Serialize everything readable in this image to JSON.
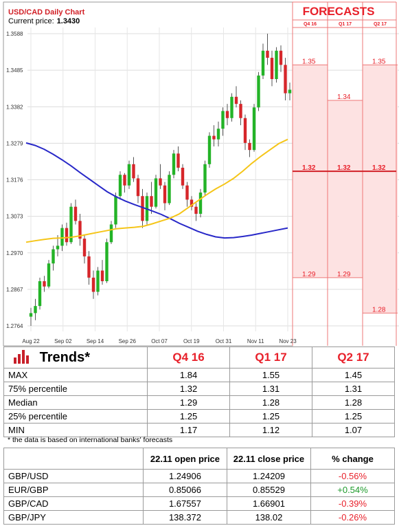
{
  "chart_data": {
    "type": "candlestick",
    "title": "USD/CAD Daily Chart",
    "price_label": "Current price:",
    "price_value": "1.3430",
    "y_ticks": [
      "1.3588",
      "1.3485",
      "1.3382",
      "1.3279",
      "1.3176",
      "1.3073",
      "1.2970",
      "1.2867",
      "1.2764"
    ],
    "y_range": [
      1.2764,
      1.3588
    ],
    "x_ticks": [
      "Aug 22",
      "Sep 02",
      "Sep 14",
      "Sep 26",
      "Oct 07",
      "Oct 19",
      "Oct 31",
      "Nov 11",
      "Nov 23"
    ],
    "colors": {
      "up": "#23b327",
      "down": "#d6262a",
      "ma_slow": "#2828c8",
      "ma_fast": "#f5c518"
    },
    "candles": [
      [
        1.279,
        1.2815,
        1.2764,
        1.28
      ],
      [
        1.28,
        1.284,
        1.278,
        1.282
      ],
      [
        1.282,
        1.29,
        1.281,
        1.289
      ],
      [
        1.289,
        1.2905,
        1.286,
        1.2875
      ],
      [
        1.2875,
        1.295,
        1.287,
        1.294
      ],
      [
        1.294,
        1.299,
        1.292,
        1.298
      ],
      [
        1.298,
        1.302,
        1.296,
        1.299
      ],
      [
        1.299,
        1.305,
        1.2975,
        1.304
      ],
      [
        1.304,
        1.3055,
        1.299,
        1.3
      ],
      [
        1.3,
        1.311,
        1.2995,
        1.31
      ],
      [
        1.31,
        1.312,
        1.305,
        1.306
      ],
      [
        1.306,
        1.308,
        1.299,
        1.301
      ],
      [
        1.301,
        1.302,
        1.294,
        1.296
      ],
      [
        1.296,
        1.2975,
        1.288,
        1.29
      ],
      [
        1.29,
        1.292,
        1.284,
        1.286
      ],
      [
        1.286,
        1.293,
        1.285,
        1.292
      ],
      [
        1.292,
        1.295,
        1.288,
        1.289
      ],
      [
        1.289,
        1.301,
        1.2885,
        1.3
      ],
      [
        1.3,
        1.306,
        1.2995,
        1.305
      ],
      [
        1.305,
        1.314,
        1.304,
        1.313
      ],
      [
        1.313,
        1.32,
        1.312,
        1.319
      ],
      [
        1.319,
        1.3195,
        1.314,
        1.316
      ],
      [
        1.316,
        1.323,
        1.315,
        1.322
      ],
      [
        1.322,
        1.324,
        1.317,
        1.318
      ],
      [
        1.318,
        1.319,
        1.311,
        1.313
      ],
      [
        1.313,
        1.315,
        1.304,
        1.306
      ],
      [
        1.306,
        1.314,
        1.305,
        1.313
      ],
      [
        1.313,
        1.317,
        1.308,
        1.31
      ],
      [
        1.31,
        1.319,
        1.3095,
        1.318
      ],
      [
        1.318,
        1.322,
        1.315,
        1.316
      ],
      [
        1.316,
        1.317,
        1.309,
        1.311
      ],
      [
        1.311,
        1.32,
        1.3105,
        1.319
      ],
      [
        1.319,
        1.326,
        1.318,
        1.325
      ],
      [
        1.325,
        1.327,
        1.32,
        1.321
      ],
      [
        1.321,
        1.322,
        1.315,
        1.316
      ],
      [
        1.316,
        1.317,
        1.31,
        1.312
      ],
      [
        1.312,
        1.313,
        1.309,
        1.31
      ],
      [
        1.31,
        1.311,
        1.306,
        1.308
      ],
      [
        1.308,
        1.315,
        1.307,
        1.314
      ],
      [
        1.314,
        1.323,
        1.313,
        1.322
      ],
      [
        1.322,
        1.331,
        1.321,
        1.33
      ],
      [
        1.33,
        1.333,
        1.327,
        1.329
      ],
      [
        1.329,
        1.334,
        1.327,
        1.332
      ],
      [
        1.332,
        1.338,
        1.33,
        1.337
      ],
      [
        1.337,
        1.339,
        1.333,
        1.335
      ],
      [
        1.335,
        1.342,
        1.334,
        1.341
      ],
      [
        1.341,
        1.344,
        1.338,
        1.339
      ],
      [
        1.339,
        1.34,
        1.333,
        1.335
      ],
      [
        1.335,
        1.336,
        1.326,
        1.328
      ],
      [
        1.328,
        1.329,
        1.324,
        1.326
      ],
      [
        1.326,
        1.339,
        1.3255,
        1.338
      ],
      [
        1.338,
        1.348,
        1.337,
        1.347
      ],
      [
        1.347,
        1.356,
        1.346,
        1.354
      ],
      [
        1.354,
        1.3588,
        1.35,
        1.352
      ],
      [
        1.352,
        1.354,
        1.344,
        1.346
      ],
      [
        1.346,
        1.355,
        1.345,
        1.354
      ],
      [
        1.354,
        1.3555,
        1.348,
        1.35
      ],
      [
        1.35,
        1.352,
        1.34,
        1.342
      ],
      [
        1.342,
        1.345,
        1.34,
        1.343
      ]
    ],
    "ma_slow": [
      1.328,
      1.3273,
      1.3262,
      1.3248,
      1.3232,
      1.3215,
      1.3196,
      1.3178,
      1.316,
      1.3142,
      1.3128,
      1.3116,
      1.3106,
      1.3097,
      1.3088,
      1.3078,
      1.3066,
      1.3053,
      1.3042,
      1.3031,
      1.3022,
      1.3015,
      1.3012,
      1.3013,
      1.3016,
      1.302,
      1.3025,
      1.303,
      1.3035,
      1.304
    ],
    "ma_fast": [
      1.3,
      1.3004,
      1.3008,
      1.3011,
      1.3012,
      1.3014,
      1.3018,
      1.3023,
      1.3028,
      1.3033,
      1.3038,
      1.304,
      1.3042,
      1.3045,
      1.3052,
      1.306,
      1.3068,
      1.308,
      1.3098,
      1.3116,
      1.3134,
      1.315,
      1.3164,
      1.318,
      1.32,
      1.3222,
      1.3242,
      1.326,
      1.3278,
      1.329
    ],
    "forecast": {
      "title": "FORECASTS",
      "quarters": [
        "Q4 16",
        "Q1 17",
        "Q2 17"
      ],
      "ranges": [
        [
          1.29,
          1.35
        ],
        [
          1.29,
          1.34
        ],
        [
          1.28,
          1.35
        ]
      ],
      "levels": [
        {
          "q": 0,
          "value": 1.35,
          "label": "1.35"
        },
        {
          "q": 2,
          "value": 1.35,
          "label": "1.35"
        },
        {
          "q": 1,
          "value": 1.34,
          "label": "1.34"
        },
        {
          "q": 0,
          "value": 1.32,
          "label": "1.32"
        },
        {
          "q": 1,
          "value": 1.32,
          "label": "1.32"
        },
        {
          "q": 2,
          "value": 1.32,
          "label": "1.32"
        },
        {
          "q": 0,
          "value": 1.29,
          "label": "1.29"
        },
        {
          "q": 1,
          "value": 1.29,
          "label": "1.29"
        },
        {
          "q": 2,
          "value": 1.28,
          "label": "1.28"
        }
      ]
    }
  },
  "trends": {
    "title": "Trends*",
    "columns": [
      "Q4 16",
      "Q1 17",
      "Q2 17"
    ],
    "rows": [
      {
        "label": "MAX",
        "values": [
          "1.84",
          "1.55",
          "1.45"
        ]
      },
      {
        "label": "75% percentile",
        "values": [
          "1.32",
          "1.31",
          "1.31"
        ]
      },
      {
        "label": "Median",
        "values": [
          "1.29",
          "1.28",
          "1.28"
        ]
      },
      {
        "label": "25% percentile",
        "values": [
          "1.25",
          "1.25",
          "1.25"
        ]
      },
      {
        "label": "MIN",
        "values": [
          "1.17",
          "1.12",
          "1.07"
        ]
      }
    ],
    "note": "* the data is based on international banks' forecasts"
  },
  "prices": {
    "columns": [
      "22.11 open price",
      "22.11 close price",
      "% change"
    ],
    "rows": [
      {
        "pair": "GBP/USD",
        "open": "1.24906",
        "close": "1.24209",
        "change": "-0.56%",
        "dir": "down"
      },
      {
        "pair": "EUR/GBP",
        "open": "0.85066",
        "close": "0.85529",
        "change": "+0.54%",
        "dir": "up"
      },
      {
        "pair": "GBP/CAD",
        "open": "1.67557",
        "close": "1.66901",
        "change": "-0.39%",
        "dir": "down"
      },
      {
        "pair": "GBP/JPY",
        "open": "138.372",
        "close": "138.02",
        "change": "-0.26%",
        "dir": "down"
      }
    ]
  }
}
